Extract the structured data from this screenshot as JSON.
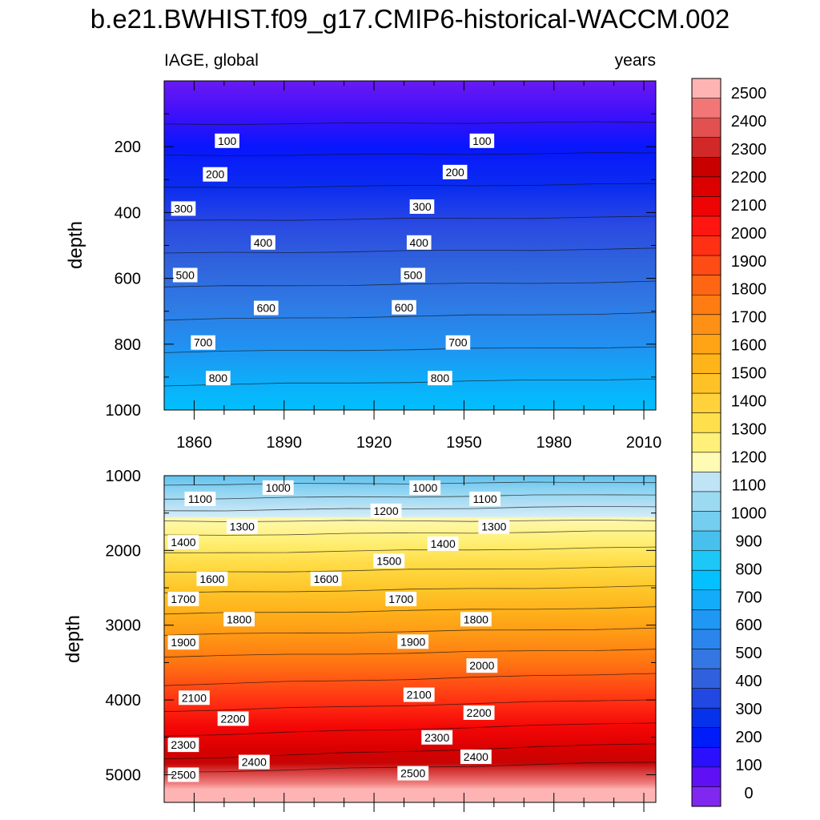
{
  "chart_data": {
    "type": "heatmap",
    "title": "b.e21.BWHIST.f09_g17.CMIP6-historical-WACCM.002",
    "left_string": "IAGE, global",
    "right_string": "years",
    "xlabel": "",
    "ylabel": "depth",
    "x_range": [
      1850,
      2014
    ],
    "x_ticks": [
      1860,
      1890,
      1920,
      1950,
      1980,
      2010
    ],
    "panels": [
      {
        "name": "upper",
        "ylim": [
          0,
          1000
        ],
        "y_ticks": [
          200,
          400,
          600,
          800,
          1000
        ],
        "contour_levels": [
          {
            "level": 100,
            "depth_start": 132,
            "depth_end": 125
          },
          {
            "level": 200,
            "depth_start": 227,
            "depth_end": 219
          },
          {
            "level": 300,
            "depth_start": 325,
            "depth_end": 313
          },
          {
            "level": 400,
            "depth_start": 425,
            "depth_end": 413
          },
          {
            "level": 500,
            "depth_start": 524,
            "depth_end": 510
          },
          {
            "level": 600,
            "depth_start": 626,
            "depth_end": 610
          },
          {
            "level": 700,
            "depth_start": 726,
            "depth_end": 705
          },
          {
            "level": 800,
            "depth_start": 824,
            "depth_end": 808
          },
          {
            "level": 900,
            "depth_start": 925,
            "depth_end": 905
          }
        ],
        "contour_labels": [
          {
            "text": "100",
            "year": 1871,
            "depth": 182
          },
          {
            "text": "100",
            "year": 1956,
            "depth": 182
          },
          {
            "text": "200",
            "year": 1867,
            "depth": 284
          },
          {
            "text": "200",
            "year": 1947,
            "depth": 277
          },
          {
            "text": "300",
            "year": 1851,
            "depth": 388
          },
          {
            "text": "300",
            "year": 1936,
            "depth": 382
          },
          {
            "text": "400",
            "year": 1883,
            "depth": 491
          },
          {
            "text": "400",
            "year": 1935,
            "depth": 491
          },
          {
            "text": "500",
            "year": 1857,
            "depth": 590
          },
          {
            "text": "500",
            "year": 1933,
            "depth": 590
          },
          {
            "text": "600",
            "year": 1884,
            "depth": 690
          },
          {
            "text": "600",
            "year": 1930,
            "depth": 688
          },
          {
            "text": "700",
            "year": 1863,
            "depth": 795
          },
          {
            "text": "700",
            "year": 1948,
            "depth": 795
          },
          {
            "text": "800",
            "year": 1868,
            "depth": 903
          },
          {
            "text": "800",
            "year": 1942,
            "depth": 903
          }
        ]
      },
      {
        "name": "lower",
        "ylim": [
          1000,
          5370
        ],
        "y_ticks": [
          1000,
          2000,
          3000,
          4000,
          5000
        ],
        "contour_levels": [
          {
            "level": 1000,
            "depth_start": 1120,
            "depth_end": 1085
          },
          {
            "level": 1100,
            "depth_start": 1310,
            "depth_end": 1250
          },
          {
            "level": 1200,
            "depth_start": 1470,
            "depth_end": 1410
          },
          {
            "level": 1300,
            "depth_start": 1610,
            "depth_end": 1600
          },
          {
            "level": 1400,
            "depth_start": 1800,
            "depth_end": 1740
          },
          {
            "level": 1500,
            "depth_start": 2040,
            "depth_end": 1960
          },
          {
            "level": 1600,
            "depth_start": 2300,
            "depth_end": 2220
          },
          {
            "level": 1700,
            "depth_start": 2570,
            "depth_end": 2480
          },
          {
            "level": 1800,
            "depth_start": 2850,
            "depth_end": 2760
          },
          {
            "level": 1900,
            "depth_start": 3130,
            "depth_end": 3040
          },
          {
            "level": 2000,
            "depth_start": 3420,
            "depth_end": 3320
          },
          {
            "level": 2100,
            "depth_start": 3800,
            "depth_end": 3640
          },
          {
            "level": 2200,
            "depth_start": 4150,
            "depth_end": 3990
          },
          {
            "level": 2300,
            "depth_start": 4480,
            "depth_end": 4300
          },
          {
            "level": 2400,
            "depth_start": 4790,
            "depth_end": 4580
          },
          {
            "level": 2500,
            "depth_start": 4970,
            "depth_end": 4830
          }
        ],
        "contour_labels": [
          {
            "text": "1000",
            "year": 1888,
            "depth": 1160
          },
          {
            "text": "1000",
            "year": 1937,
            "depth": 1160
          },
          {
            "text": "1100",
            "year": 1862,
            "depth": 1310
          },
          {
            "text": "1100",
            "year": 1957,
            "depth": 1310
          },
          {
            "text": "1200",
            "year": 1924,
            "depth": 1470
          },
          {
            "text": "1300",
            "year": 1876,
            "depth": 1680
          },
          {
            "text": "1300",
            "year": 1960,
            "depth": 1680
          },
          {
            "text": "1400",
            "year": 1853,
            "depth": 1890
          },
          {
            "text": "1400",
            "year": 1943,
            "depth": 1910
          },
          {
            "text": "1500",
            "year": 1925,
            "depth": 2140
          },
          {
            "text": "1600",
            "year": 1866,
            "depth": 2380
          },
          {
            "text": "1600",
            "year": 1904,
            "depth": 2380
          },
          {
            "text": "1700",
            "year": 1852,
            "depth": 2650
          },
          {
            "text": "1700",
            "year": 1929,
            "depth": 2650
          },
          {
            "text": "1800",
            "year": 1875,
            "depth": 2920
          },
          {
            "text": "1800",
            "year": 1954,
            "depth": 2920
          },
          {
            "text": "1900",
            "year": 1853,
            "depth": 3230
          },
          {
            "text": "1900",
            "year": 1933,
            "depth": 3220
          },
          {
            "text": "2000",
            "year": 1956,
            "depth": 3540
          },
          {
            "text": "2100",
            "year": 1860,
            "depth": 3970
          },
          {
            "text": "2100",
            "year": 1935,
            "depth": 3930
          },
          {
            "text": "2200",
            "year": 1873,
            "depth": 4250
          },
          {
            "text": "2200",
            "year": 1955,
            "depth": 4170
          },
          {
            "text": "2300",
            "year": 1842,
            "depth": 4600
          },
          {
            "text": "2300",
            "year": 1941,
            "depth": 4500
          },
          {
            "text": "2400",
            "year": 1880,
            "depth": 4830
          },
          {
            "text": "2400",
            "year": 1954,
            "depth": 4760
          },
          {
            "text": "2500",
            "year": 1852,
            "depth": 5000
          },
          {
            "text": "2500",
            "year": 1933,
            "depth": 4980
          }
        ]
      }
    ],
    "colorbar": {
      "labels": [
        0,
        100,
        200,
        300,
        400,
        500,
        600,
        700,
        800,
        900,
        1000,
        1100,
        1200,
        1300,
        1400,
        1500,
        1600,
        1700,
        1800,
        1900,
        2000,
        2100,
        2200,
        2300,
        2400,
        2500
      ],
      "colors": [
        "#8028ef",
        "#6010f4",
        "#2a10fc",
        "#001cf8",
        "#0732ec",
        "#2148e2",
        "#3060dc",
        "#3577e2",
        "#2a86ec",
        "#1e98f4",
        "#12acfa",
        "#04c0fe",
        "#1cc8f8",
        "#48c0ee",
        "#74cef0",
        "#9cdaf2",
        "#bfe4f6",
        "#fffab4",
        "#fff07a",
        "#ffe04c",
        "#ffd23c",
        "#fec226",
        "#ffb41a",
        "#ffa414",
        "#ff9016",
        "#ff7c12",
        "#ff6614",
        "#ff4c14",
        "#ff3014",
        "#ff1610",
        "#ee0404",
        "#dc0000",
        "#c80000",
        "#d22828",
        "#e25050",
        "#f27676",
        "#ffb4b4"
      ]
    }
  }
}
